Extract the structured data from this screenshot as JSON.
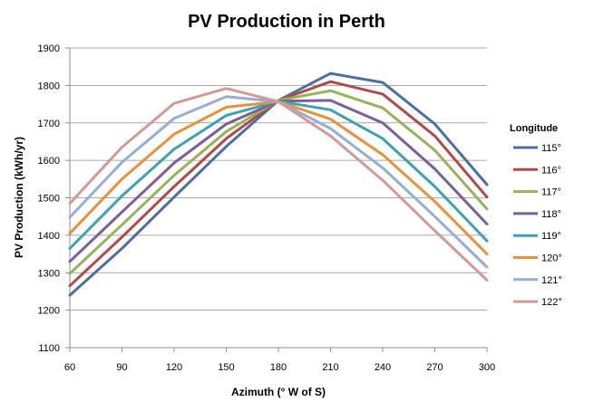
{
  "chart_data": {
    "type": "line",
    "title": "PV Production in Perth",
    "xlabel": "Azimuth (° W of S)",
    "ylabel": "PV Production (kWh/yr)",
    "x": [
      60,
      90,
      120,
      150,
      180,
      210,
      240,
      270,
      300
    ],
    "x_ticks": [
      "60",
      "90",
      "120",
      "150",
      "180",
      "210",
      "240",
      "270",
      "300"
    ],
    "ylim": [
      1100,
      1900
    ],
    "y_ticks": [
      "1100",
      "1200",
      "1300",
      "1400",
      "1500",
      "1600",
      "1700",
      "1800",
      "1900"
    ],
    "grid": "horizontal major gridlines",
    "legend": {
      "title": "Longitude",
      "position": "right"
    },
    "series": [
      {
        "name": "115°",
        "color": "#4A6FA5",
        "values": [
          1240,
          1365,
          1502,
          1637,
          1760,
          1832,
          1808,
          1697,
          1535
        ]
      },
      {
        "name": "116°",
        "color": "#B04A47",
        "values": [
          1265,
          1395,
          1530,
          1658,
          1760,
          1810,
          1777,
          1665,
          1502
        ]
      },
      {
        "name": "117°",
        "color": "#96B35A",
        "values": [
          1298,
          1428,
          1560,
          1677,
          1760,
          1786,
          1740,
          1627,
          1470
        ]
      },
      {
        "name": "118°",
        "color": "#7A5F98",
        "values": [
          1330,
          1462,
          1593,
          1697,
          1758,
          1760,
          1700,
          1577,
          1430
        ]
      },
      {
        "name": "119°",
        "color": "#3FA0B5",
        "values": [
          1365,
          1505,
          1630,
          1720,
          1758,
          1735,
          1658,
          1530,
          1385
        ]
      },
      {
        "name": "120°",
        "color": "#E8913C",
        "values": [
          1405,
          1550,
          1670,
          1742,
          1757,
          1710,
          1615,
          1490,
          1350
        ]
      },
      {
        "name": "121°",
        "color": "#93AFD3",
        "values": [
          1448,
          1595,
          1712,
          1770,
          1757,
          1685,
          1580,
          1450,
          1315
        ]
      },
      {
        "name": "122°",
        "color": "#D19A97",
        "values": [
          1485,
          1635,
          1752,
          1792,
          1757,
          1665,
          1547,
          1412,
          1280
        ]
      }
    ]
  }
}
